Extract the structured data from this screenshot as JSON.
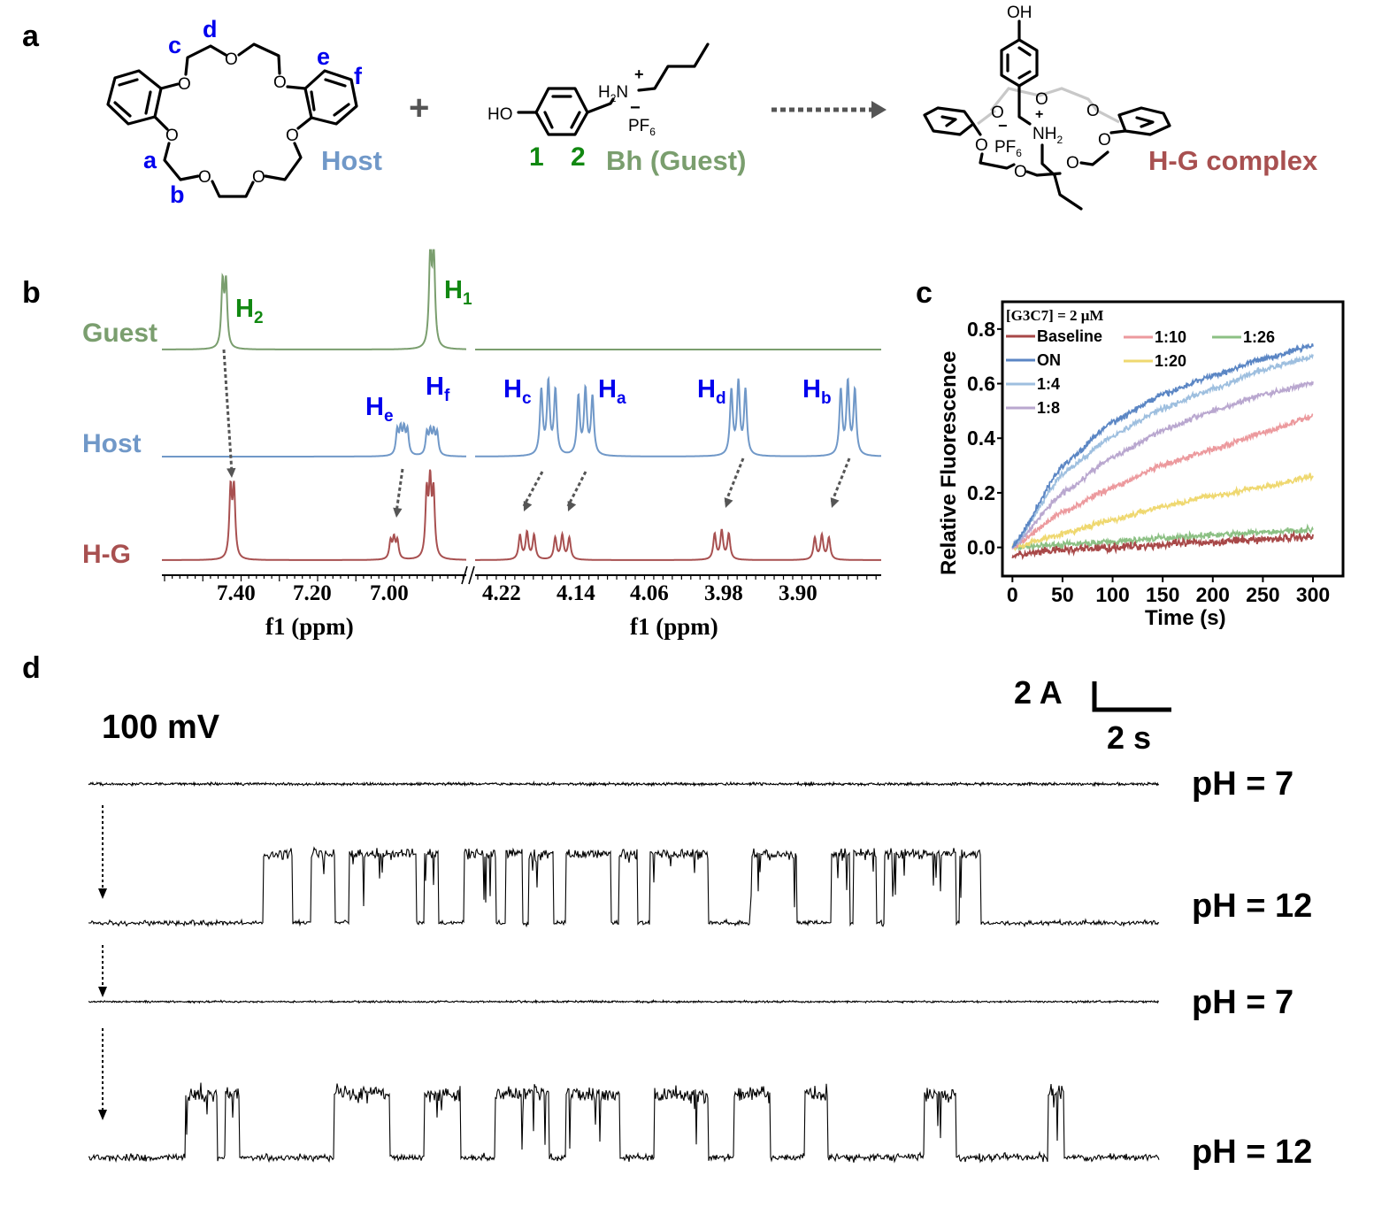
{
  "panel_labels": {
    "a": "a",
    "b": "b",
    "c": "c",
    "d": "d"
  },
  "scheme": {
    "host_label": "Host",
    "guest_label": "Bh (Guest)",
    "complex_label": "H-G complex",
    "plus": "+",
    "host_proton_labels": [
      "a",
      "b",
      "c",
      "d",
      "e",
      "f"
    ],
    "guest_proton_labels": [
      "1",
      "2"
    ],
    "atoms": {
      "o": "O",
      "ho": "HO",
      "oh": "OH",
      "h2n": "H",
      "n": "N",
      "nh": "NH",
      "sub2": "2",
      "pf": "PF",
      "sub6": "6",
      "plus": "+",
      "minus": "−"
    },
    "colors": {
      "host": "#7098c8",
      "guest": "#7a9e6e",
      "complex": "#a85050",
      "proton_blue": "#0000ee",
      "proton_green": "#118811"
    }
  },
  "nmr": {
    "xlabel": "f1 (ppm)",
    "left_ticks": [
      "7.40",
      "7.20",
      "7.00"
    ],
    "right_ticks": [
      "4.22",
      "4.14",
      "4.06",
      "3.98",
      "3.90"
    ],
    "left_range_ppm": [
      7.61,
      6.81
    ],
    "right_range_ppm": [
      4.254,
      3.816
    ],
    "spectra": [
      {
        "name": "Guest",
        "color": "#7a9e6e",
        "peaks": [
          {
            "ppm": 7.446,
            "n": 2,
            "rel": 0.68
          },
          {
            "ppm": 6.9,
            "n": 2,
            "rel": 1.0
          }
        ]
      },
      {
        "name": "Host",
        "color": "#7098c8",
        "peaks": [
          {
            "ppm": 6.978,
            "n": 4,
            "rel": 0.5
          },
          {
            "ppm": 6.9,
            "n": 4,
            "rel": 0.45
          },
          {
            "ppm": 4.175,
            "n": 3,
            "rel": 1.0
          },
          {
            "ppm": 4.135,
            "n": 3,
            "rel": 0.9
          },
          {
            "ppm": 3.97,
            "n": 3,
            "rel": 1.0
          },
          {
            "ppm": 3.852,
            "n": 3,
            "rel": 1.0
          }
        ]
      },
      {
        "name": "H-G",
        "color": "#a85050",
        "peaks": [
          {
            "ppm": 7.425,
            "n": 2,
            "rel": 0.72
          },
          {
            "ppm": 7.0,
            "n": 3,
            "rel": 0.28
          },
          {
            "ppm": 6.905,
            "n": 3,
            "rel": 1.0
          },
          {
            "ppm": 4.198,
            "n": 3,
            "rel": 0.38
          },
          {
            "ppm": 4.16,
            "n": 3,
            "rel": 0.34
          },
          {
            "ppm": 3.988,
            "n": 3,
            "rel": 0.4
          },
          {
            "ppm": 3.88,
            "n": 3,
            "rel": 0.34
          }
        ]
      }
    ],
    "peak_labels": [
      {
        "main": "H",
        "sub": "2",
        "color": "#118811"
      },
      {
        "main": "H",
        "sub": "1",
        "color": "#118811"
      },
      {
        "main": "H",
        "sub": "e",
        "color": "#0000ee"
      },
      {
        "main": "H",
        "sub": "f",
        "color": "#0000ee"
      },
      {
        "main": "H",
        "sub": "c",
        "color": "#0000ee"
      },
      {
        "main": "H",
        "sub": "a",
        "color": "#0000ee"
      },
      {
        "main": "H",
        "sub": "d",
        "color": "#0000ee"
      },
      {
        "main": "H",
        "sub": "b",
        "color": "#0000ee"
      }
    ]
  },
  "chart_data": {
    "type": "line",
    "title": "",
    "annotation": "[G3C7] = 2 μM",
    "xlabel": "Time (s)",
    "ylabel": "Relative Fluorescence",
    "xlim": [
      -10,
      330
    ],
    "ylim": [
      -0.105,
      0.9
    ],
    "xticks": [
      "0",
      "50",
      "100",
      "150",
      "200",
      "250",
      "300"
    ],
    "yticks": [
      "0.0",
      "0.2",
      "0.4",
      "0.6",
      "0.8"
    ],
    "grid": false,
    "legend": "top-left",
    "x": [
      0,
      50,
      100,
      150,
      200,
      250,
      300
    ],
    "series": [
      {
        "name": "Baseline",
        "color": "#a84848",
        "values": [
          -0.03,
          -0.01,
          0.0,
          0.01,
          0.02,
          0.03,
          0.04
        ]
      },
      {
        "name": "ON",
        "color": "#5b86c4",
        "values": [
          0.0,
          0.3,
          0.46,
          0.56,
          0.63,
          0.69,
          0.74
        ]
      },
      {
        "name": "1:4",
        "color": "#9ebfdf",
        "values": [
          0.0,
          0.27,
          0.41,
          0.51,
          0.58,
          0.65,
          0.7
        ]
      },
      {
        "name": "1:8",
        "color": "#b9a7cf",
        "values": [
          0.0,
          0.2,
          0.33,
          0.43,
          0.5,
          0.56,
          0.6
        ]
      },
      {
        "name": "1:10",
        "color": "#ec9a9e",
        "values": [
          0.0,
          0.13,
          0.22,
          0.3,
          0.36,
          0.42,
          0.48
        ]
      },
      {
        "name": "1:20",
        "color": "#efd870",
        "values": [
          0.0,
          0.05,
          0.1,
          0.15,
          0.19,
          0.22,
          0.26
        ]
      },
      {
        "name": "1:26",
        "color": "#8cc084",
        "values": [
          0.0,
          0.01,
          0.02,
          0.035,
          0.045,
          0.055,
          0.065
        ]
      }
    ]
  },
  "traces": {
    "voltage": "100 mV",
    "scale_current": "2 A",
    "scale_time": "2 s",
    "conditions": [
      "pH = 7",
      "pH = 12",
      "pH = 7",
      "pH = 12"
    ]
  }
}
